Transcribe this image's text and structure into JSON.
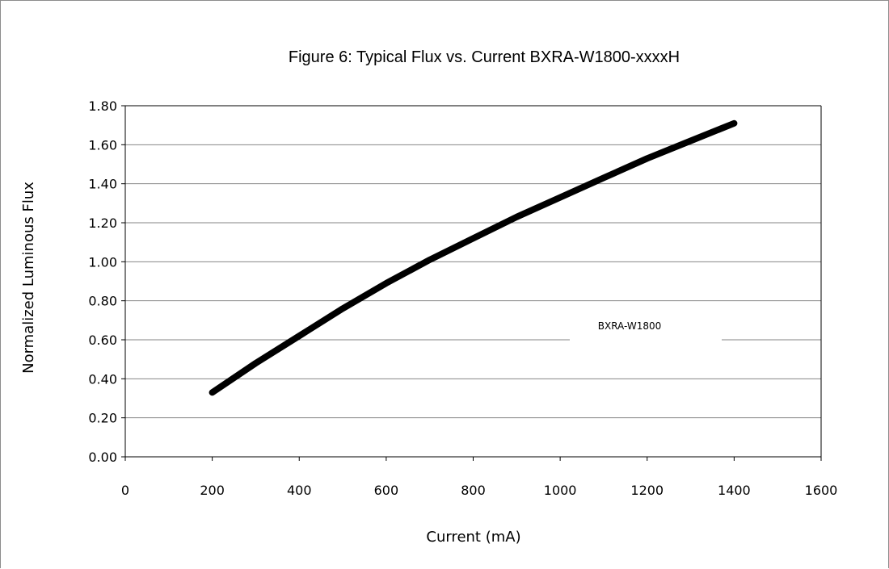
{
  "chart_data": {
    "type": "line",
    "title": "Figure 6:  Typical Flux vs. Current BXRA-W1800-xxxxH",
    "xlabel": "Current (mA)",
    "ylabel": "Normalized Luminous Flux",
    "xlim": [
      0,
      1600
    ],
    "ylim": [
      0,
      1.8
    ],
    "x_ticks": [
      "0",
      "200",
      "400",
      "600",
      "800",
      "1000",
      "1200",
      "1400",
      "1600"
    ],
    "y_ticks": [
      "0.00",
      "0.20",
      "0.40",
      "0.60",
      "0.80",
      "1.00",
      "1.20",
      "1.40",
      "1.60",
      "1.80"
    ],
    "grid": "horizontal",
    "legend_position": "right",
    "series": [
      {
        "name": "BXRA-W1800",
        "color": "#000000",
        "x": [
          200,
          300,
          400,
          500,
          600,
          700,
          800,
          900,
          1000,
          1100,
          1200,
          1300,
          1400
        ],
        "y": [
          0.33,
          0.48,
          0.62,
          0.76,
          0.89,
          1.01,
          1.12,
          1.23,
          1.33,
          1.43,
          1.53,
          1.62,
          1.71
        ]
      }
    ]
  }
}
